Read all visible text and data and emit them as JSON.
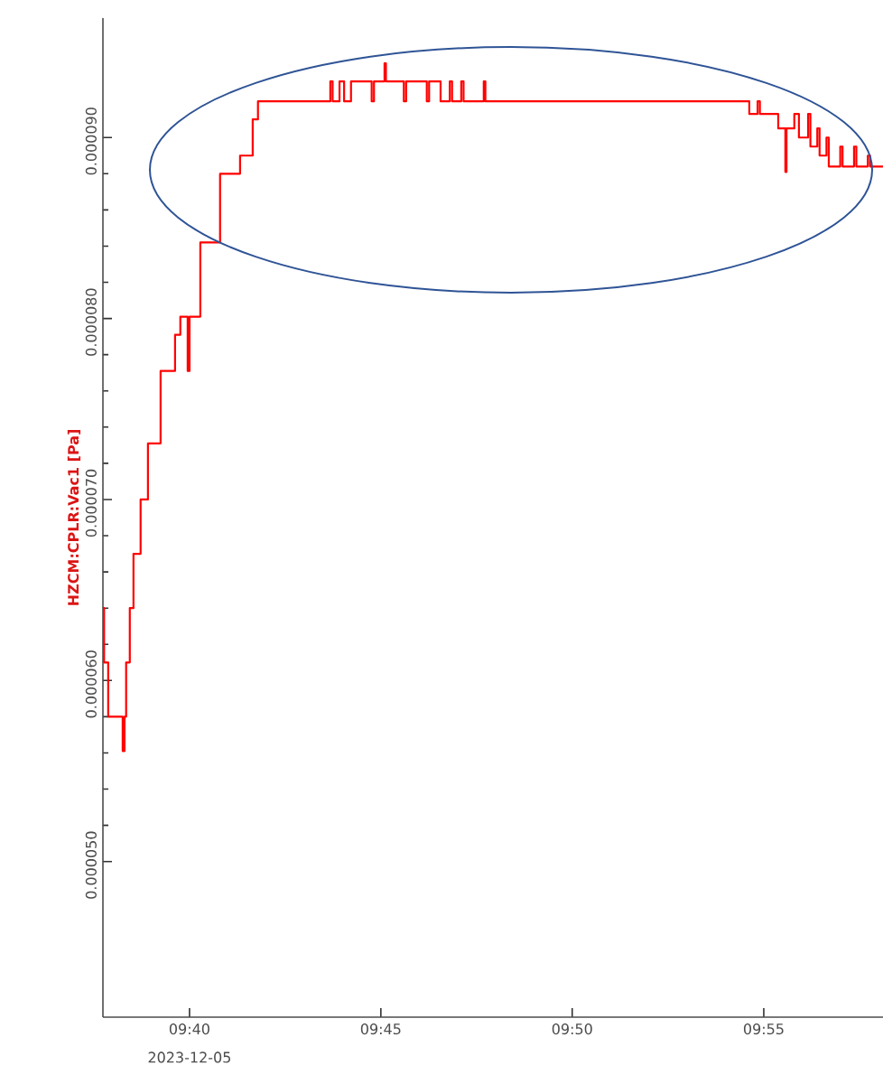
{
  "chart_data": {
    "type": "step",
    "ylabel": "HZCM:CPLR:Vac1 [Pa]",
    "annotations": [
      "2023-12-05"
    ],
    "xlim": [
      9.629,
      9.9686
    ],
    "ylim": [
      4.14e-05,
      9.66e-05
    ],
    "xticks": [
      {
        "value": 9.6667,
        "label": "09:40"
      },
      {
        "value": 9.75,
        "label": "09:45"
      },
      {
        "value": 9.8333,
        "label": "09:50"
      },
      {
        "value": 9.9167,
        "label": "09:55"
      }
    ],
    "yticks": [
      {
        "value": 5e-05,
        "label": "0.000050"
      },
      {
        "value": 6e-05,
        "label": "0.000060"
      },
      {
        "value": 7e-05,
        "label": "0.000070"
      },
      {
        "value": 8e-05,
        "label": "0.000080"
      },
      {
        "value": 9e-05,
        "label": "0.000090"
      }
    ],
    "marker": "none",
    "line_style": "solid",
    "series": [
      {
        "color": "#ff0000",
        "x": [
          9.629,
          9.6295,
          9.6313,
          9.6376,
          9.6384,
          9.6391,
          9.6407,
          9.6423,
          9.6454,
          9.6486,
          9.6541,
          9.6604,
          9.6627,
          9.6659,
          9.6667,
          9.6714,
          9.68,
          9.6887,
          9.6942,
          9.6965,
          9.728,
          9.729,
          9.732,
          9.734,
          9.737,
          9.746,
          9.747,
          9.7516,
          9.7522,
          9.76,
          9.761,
          9.77,
          9.771,
          9.776,
          9.78,
          9.781,
          9.785,
          9.786,
          9.7948,
          9.7955,
          9.9104,
          9.914,
          9.915,
          9.923,
          9.9261,
          9.9266,
          9.93,
          9.932,
          9.936,
          9.937,
          9.94,
          9.941,
          9.944,
          9.945,
          9.95,
          9.951,
          9.956,
          9.957,
          9.962,
          9.963,
          9.9686
        ],
        "values": [
          6.4e-05,
          6.1e-05,
          5.8e-05,
          5.61e-05,
          5.8e-05,
          6.1e-05,
          6.4e-05,
          6.7e-05,
          7e-05,
          7.31e-05,
          7.71e-05,
          7.91e-05,
          8.01e-05,
          7.71e-05,
          8.01e-05,
          8.42e-05,
          8.8e-05,
          8.9e-05,
          9.1e-05,
          9.2e-05,
          9.31e-05,
          9.2e-05,
          9.31e-05,
          9.2e-05,
          9.31e-05,
          9.2e-05,
          9.31e-05,
          9.41e-05,
          9.31e-05,
          9.2e-05,
          9.31e-05,
          9.2e-05,
          9.31e-05,
          9.2e-05,
          9.31e-05,
          9.2e-05,
          9.31e-05,
          9.2e-05,
          9.31e-05,
          9.2e-05,
          9.13e-05,
          9.2e-05,
          9.13e-05,
          9.05e-05,
          8.81e-05,
          9.05e-05,
          9.13e-05,
          9e-05,
          9.13e-05,
          8.95e-05,
          9.05e-05,
          8.9e-05,
          9e-05,
          8.84e-05,
          8.95e-05,
          8.84e-05,
          8.95e-05,
          8.84e-05,
          8.9e-05,
          8.84e-05,
          8.84e-05
        ]
      }
    ]
  }
}
